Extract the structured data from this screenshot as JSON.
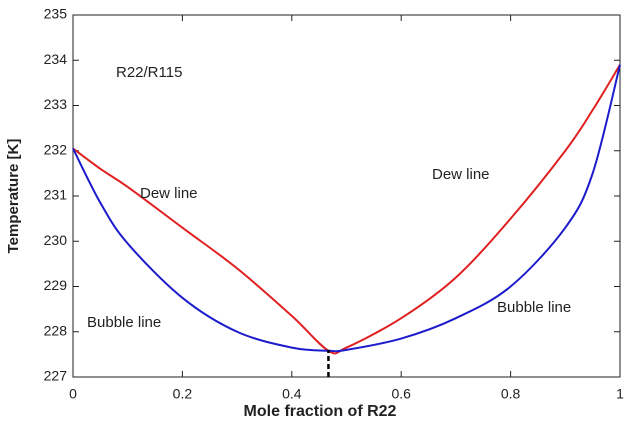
{
  "chart_data": {
    "type": "line",
    "xlabel": "Mole fraction of R22",
    "ylabel": "Temperature [K]",
    "xlim": [
      0,
      1
    ],
    "ylim": [
      227,
      235
    ],
    "xticks": [
      0,
      0.2,
      0.4,
      0.6,
      0.8,
      1
    ],
    "yticks": [
      227,
      228,
      229,
      230,
      231,
      232,
      233,
      234,
      235
    ],
    "annotations": [
      "R22/R115",
      "Dew line",
      "Dew line",
      "Bubble line",
      "Bubble line"
    ],
    "series": [
      {
        "name": "Dew line",
        "color": "#e02020",
        "x": [
          0,
          0.05,
          0.1,
          0.2,
          0.3,
          0.4,
          0.467,
          0.5,
          0.6,
          0.7,
          0.8,
          0.9,
          0.95,
          1
        ],
        "values": [
          232.05,
          231.6,
          231.2,
          230.3,
          229.4,
          228.35,
          227.58,
          227.65,
          228.3,
          229.2,
          230.5,
          232.0,
          232.9,
          233.9
        ]
      },
      {
        "name": "Bubble line",
        "color": "#1c1ccc",
        "x": [
          0,
          0.05,
          0.1,
          0.2,
          0.3,
          0.4,
          0.467,
          0.5,
          0.6,
          0.7,
          0.8,
          0.9,
          0.95,
          1
        ],
        "values": [
          232.05,
          230.85,
          229.95,
          228.75,
          228.0,
          227.65,
          227.58,
          227.6,
          227.85,
          228.3,
          229.0,
          230.3,
          231.5,
          233.9
        ]
      }
    ],
    "marker": {
      "x": 0.467,
      "y": [
        227,
        227.6
      ],
      "color": "#000000"
    }
  }
}
